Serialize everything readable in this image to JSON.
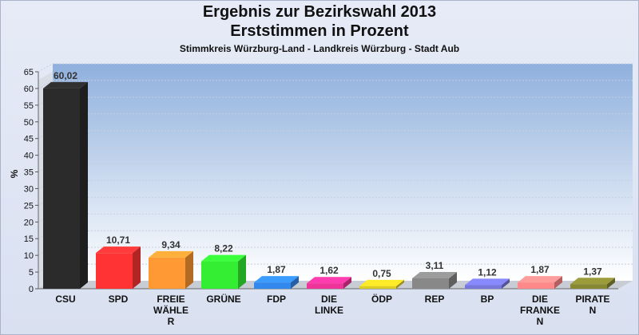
{
  "header": {
    "title": "Ergebnis zur Bezirkswahl 2013",
    "subtitle": "Erststimmen in Prozent",
    "region": "Stimmkreis Würzburg-Land - Landkreis Würzburg - Stadt Aub"
  },
  "chart_data": {
    "type": "bar",
    "ylabel": "%",
    "ylim": [
      0,
      65
    ],
    "yticks": [
      0,
      5,
      10,
      15,
      20,
      25,
      30,
      35,
      40,
      45,
      50,
      55,
      60,
      65
    ],
    "grid": true,
    "categories": [
      [
        "CSU"
      ],
      [
        "SPD"
      ],
      [
        "FREIE",
        "WÄHLE",
        "R"
      ],
      [
        "GRÜNE"
      ],
      [
        "FDP"
      ],
      [
        "DIE",
        "LINKE"
      ],
      [
        "ÖDP"
      ],
      [
        "REP"
      ],
      [
        "BP"
      ],
      [
        "DIE",
        "FRANKE",
        "N"
      ],
      [
        "PIRATE",
        "N"
      ]
    ],
    "values": [
      60.02,
      10.71,
      9.34,
      8.22,
      1.87,
      1.62,
      0.75,
      3.11,
      1.12,
      1.87,
      1.37
    ],
    "value_labels": [
      "60,02",
      "10,71",
      "9,34",
      "8,22",
      "1,87",
      "1,62",
      "0,75",
      "3,11",
      "1,12",
      "1,87",
      "1,37"
    ],
    "colors": [
      "#2b2b2b",
      "#ff3333",
      "#ff9933",
      "#33ee33",
      "#3388ee",
      "#ee3399",
      "#ddcc22",
      "#888888",
      "#7777dd",
      "#ff8888",
      "#888833"
    ]
  }
}
